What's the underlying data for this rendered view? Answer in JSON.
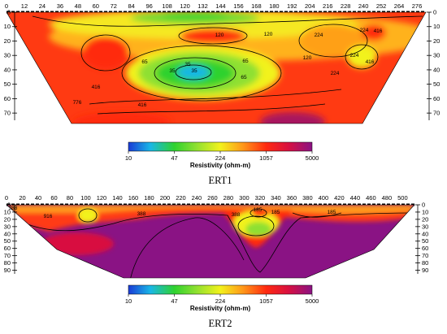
{
  "colors": {
    "scale": [
      "#1b3bd6",
      "#19b7e6",
      "#2fd22f",
      "#8fe030",
      "#f2f21c",
      "#ff9a1a",
      "#ff2a10",
      "#d81040",
      "#8a1384"
    ],
    "background": "#ffffff"
  },
  "chart_data": [
    {
      "type": "heatmap",
      "title": "ERT1",
      "x_ticks": [
        "0",
        "12",
        "24",
        "36",
        "48",
        "60",
        "72",
        "84",
        "96",
        "108",
        "120",
        "132",
        "144",
        "156",
        "168",
        "180",
        "192",
        "204",
        "216",
        "228",
        "240",
        "252",
        "264",
        "276"
      ],
      "y_ticks": [
        "0",
        "10",
        "20",
        "30",
        "40",
        "50",
        "60",
        "70"
      ],
      "xlim": [
        0,
        282
      ],
      "ylim": [
        0,
        75
      ],
      "contour_labels": [
        "120",
        "224",
        "120",
        "224",
        "416",
        "65",
        "65",
        "65",
        "35",
        "35",
        "35",
        "120",
        "224",
        "224",
        "416",
        "416",
        "776",
        "416"
      ],
      "colorbar": {
        "ticks": [
          "10",
          "47",
          "224",
          "1057",
          "5000"
        ],
        "label": "Resistivity (ohm-m)"
      }
    },
    {
      "type": "heatmap",
      "title": "ERT2",
      "x_ticks": [
        "0",
        "20",
        "40",
        "60",
        "80",
        "100",
        "120",
        "140",
        "160",
        "180",
        "200",
        "220",
        "240",
        "260",
        "280",
        "300",
        "320",
        "340",
        "360",
        "380",
        "400",
        "420",
        "440",
        "460",
        "480",
        "500"
      ],
      "y_ticks": [
        "0",
        "10",
        "20",
        "30",
        "40",
        "50",
        "60",
        "70",
        "80",
        "90"
      ],
      "xlim": [
        0,
        515
      ],
      "ylim": [
        0,
        95
      ],
      "contour_labels": [
        "388",
        "916",
        "388",
        "185",
        "388",
        "185",
        "185"
      ],
      "colorbar": {
        "ticks": [
          "10",
          "47",
          "224",
          "1057",
          "5000"
        ],
        "label": "Resistivity (ohm-m)"
      }
    }
  ]
}
